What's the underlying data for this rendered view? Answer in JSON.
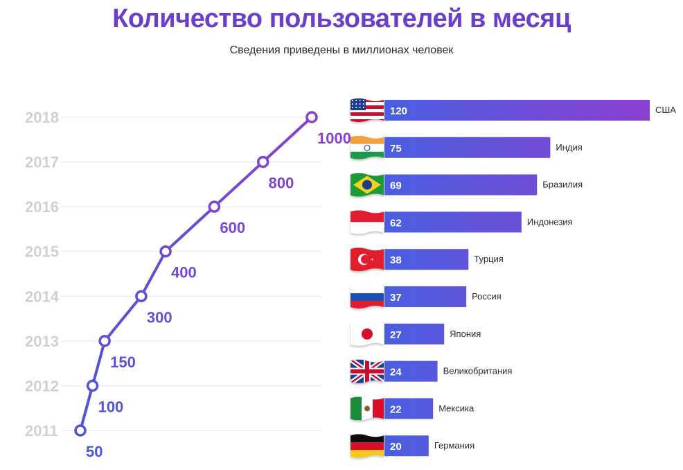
{
  "title": "Количество пользователей в месяц",
  "subtitle": "Сведения приведены в миллионах человек",
  "colors": {
    "title": "#6b3fc9",
    "line_start": "#4a57d6",
    "line_end": "#8a3fd0",
    "bar_start": "#4a5fe0",
    "bar_end": "#8b3fcf",
    "tick": "#d0d0d0",
    "grid": "#e8e8e8"
  },
  "chart_data": [
    {
      "type": "line",
      "title": "",
      "xlabel": "",
      "ylabel": "",
      "y_categories": [
        "2011",
        "2012",
        "2013",
        "2014",
        "2015",
        "2016",
        "2017",
        "2018"
      ],
      "values": [
        50,
        100,
        150,
        300,
        400,
        600,
        800,
        1000
      ],
      "labels": [
        "50",
        "100",
        "150",
        "300",
        "400",
        "600",
        "800",
        "1000"
      ],
      "xlim": [
        0,
        1000
      ],
      "grid": true
    },
    {
      "type": "bar",
      "orientation": "horizontal",
      "title": "",
      "categories": [
        "США",
        "Индия",
        "Бразилия",
        "Индонезия",
        "Турция",
        "Россия",
        "Япония",
        "Великобритания",
        "Мексика",
        "Германия"
      ],
      "values": [
        120,
        75,
        69,
        62,
        38,
        37,
        27,
        24,
        22,
        20
      ],
      "flags": [
        "usa-flag-icon",
        "india-flag-icon",
        "brazil-flag-icon",
        "indonesia-flag-icon",
        "turkey-flag-icon",
        "russia-flag-icon",
        "japan-flag-icon",
        "uk-flag-icon",
        "mexico-flag-icon",
        "germany-flag-icon"
      ]
    }
  ]
}
